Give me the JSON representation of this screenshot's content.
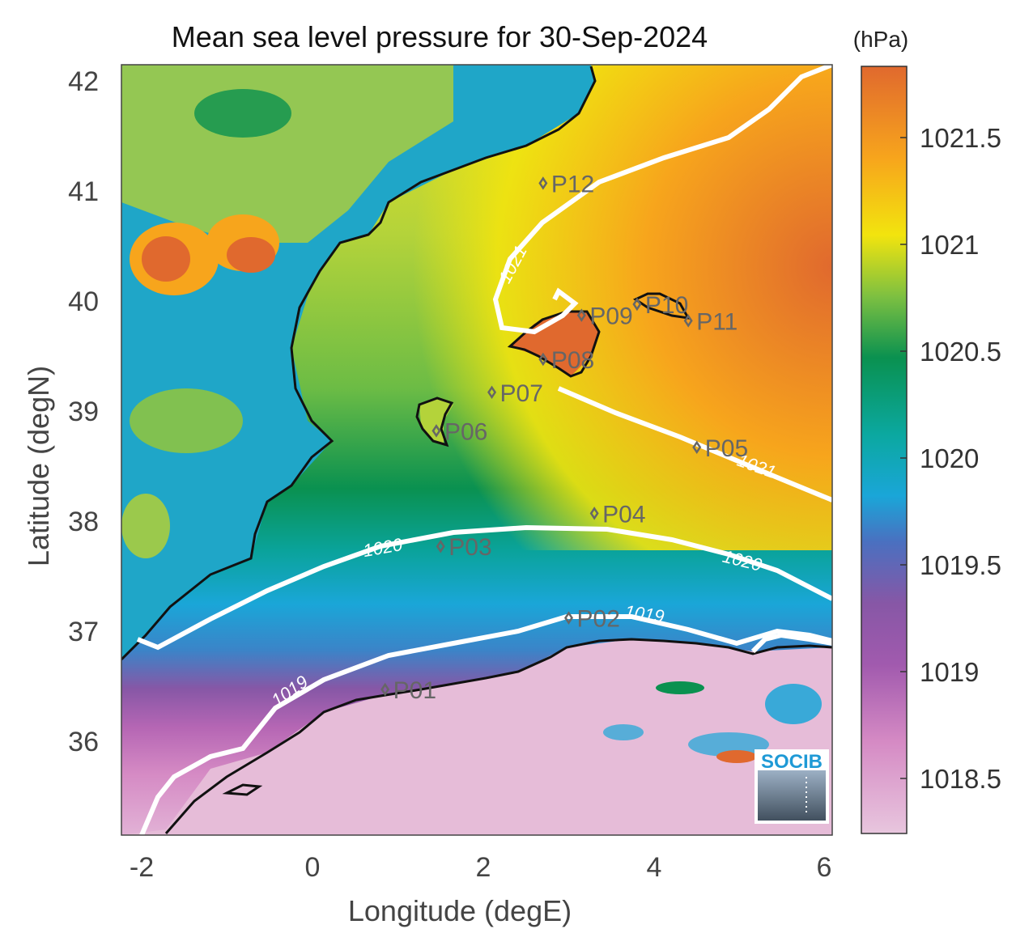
{
  "title": "Mean sea level pressure for 30-Sep-2024",
  "xlabel": "Longitude (degE)",
  "ylabel": "Latitude (degN)",
  "colorbar": {
    "unit": "(hPa)",
    "range": [
      1018.25,
      1021.85
    ],
    "ticks": [
      "1021.5",
      "1021",
      "1020.5",
      "1020",
      "1019.5",
      "1019",
      "1018.5"
    ],
    "colors": [
      "#e8c6de",
      "#d58ac4",
      "#8757a6",
      "#1aa6d8",
      "#0ba8a0",
      "#0a9150",
      "#7dc041",
      "#f2e40e",
      "#f7a51c",
      "#e0692e"
    ]
  },
  "map": {
    "lon_range": [
      -2.25,
      6.05
    ],
    "lat_range": [
      35.15,
      42.15
    ],
    "xticks": [
      "-2",
      "0",
      "2",
      "4",
      "6"
    ],
    "yticks": [
      "42",
      "41",
      "40",
      "39",
      "38",
      "37",
      "36"
    ]
  },
  "stations": [
    {
      "id": "P01",
      "lon": 0.85,
      "lat": 36.5
    },
    {
      "id": "P02",
      "lon": 3.0,
      "lat": 37.15
    },
    {
      "id": "P03",
      "lon": 1.5,
      "lat": 37.8
    },
    {
      "id": "P04",
      "lon": 3.3,
      "lat": 38.1
    },
    {
      "id": "P05",
      "lon": 4.5,
      "lat": 38.7
    },
    {
      "id": "P06",
      "lon": 1.45,
      "lat": 38.85
    },
    {
      "id": "P07",
      "lon": 2.1,
      "lat": 39.2
    },
    {
      "id": "P08",
      "lon": 2.7,
      "lat": 39.5
    },
    {
      "id": "P09",
      "lon": 3.15,
      "lat": 39.9
    },
    {
      "id": "P10",
      "lon": 3.8,
      "lat": 40.0
    },
    {
      "id": "P11",
      "lon": 4.4,
      "lat": 39.85
    },
    {
      "id": "P12",
      "lon": 2.7,
      "lat": 41.1
    }
  ],
  "contour_labels": [
    "1021",
    "1021",
    "1020",
    "1020",
    "1019",
    "1019"
  ],
  "logo": "SOCIB"
}
